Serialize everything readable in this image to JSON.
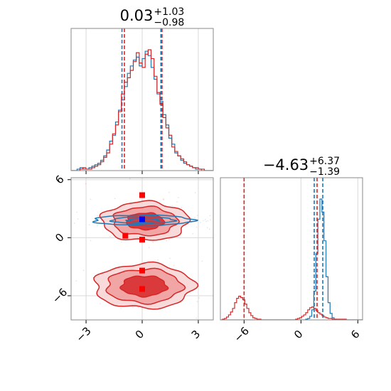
{
  "chart_data": [
    {
      "type": "histogram",
      "panel": "top-left",
      "title_main": "0.03",
      "title_sup": "+1.03",
      "title_sub": "−0.98",
      "xlim": [
        -3.8,
        3.8
      ],
      "bin_edges_range": [
        -3.8,
        3.8
      ],
      "series": [
        {
          "name": "",
          "color": "#1f77b4",
          "counts": [
            0,
            0,
            1,
            2,
            1,
            1,
            2,
            3,
            4,
            5,
            7,
            10,
            14,
            20,
            24,
            33,
            41,
            48,
            57,
            66,
            71,
            75,
            77,
            71,
            76,
            81,
            78,
            70,
            62,
            52,
            47,
            38,
            31,
            22,
            18,
            12,
            10,
            7,
            5,
            4,
            3,
            2,
            1,
            1,
            0,
            0,
            0,
            0
          ],
          "quantiles": [
            -1.08,
            1.0
          ]
        },
        {
          "name": "",
          "color": "#d62728",
          "counts": [
            0,
            0,
            0,
            1,
            2,
            1,
            1,
            2,
            3,
            4,
            6,
            9,
            12,
            18,
            25,
            31,
            40,
            52,
            60,
            63,
            68,
            74,
            80,
            73,
            70,
            79,
            82,
            76,
            64,
            53,
            45,
            36,
            29,
            24,
            16,
            13,
            10,
            8,
            6,
            4,
            3,
            2,
            2,
            1,
            1,
            0,
            0,
            0
          ],
          "quantiles": [
            -0.95,
            1.06
          ]
        }
      ],
      "xticks": [
        -3,
        0,
        3
      ],
      "xtick_labels_shown": false
    },
    {
      "type": "contour",
      "panel": "bottom-left",
      "xlim": [
        -3.8,
        3.8
      ],
      "ylim": [
        -8.5,
        6.2
      ],
      "xticks": [
        -3,
        0,
        3
      ],
      "xtick_labels": [
        "−3",
        "0",
        "3"
      ],
      "yticks": [
        -6,
        0,
        6
      ],
      "ytick_labels": [
        "−6",
        "0",
        "6"
      ],
      "blobs": [
        {
          "color": "#d62728",
          "cx": 0.15,
          "cy": 1.7,
          "sx": 1.1,
          "sy": 0.95,
          "levels": [
            2.1,
            1.55,
            0.9
          ]
        },
        {
          "color": "#d62728",
          "cx": 0.1,
          "cy": -5.0,
          "sx": 1.15,
          "sy": 1.0,
          "levels": [
            2.3,
            1.75,
            1.05
          ]
        },
        {
          "color": "#1f77b4",
          "cx": 0.05,
          "cy": 1.8,
          "sx": 1.4,
          "sy": 0.28,
          "levels": [
            1.9,
            1.2,
            0.6
          ]
        }
      ],
      "outlier_squares": [
        {
          "x": -0.9,
          "y": 0.2,
          "color": "#ff0000"
        },
        {
          "x": 0.0,
          "y": 4.4,
          "color": "#ff0000"
        },
        {
          "x": 0.0,
          "y": -0.2,
          "color": "#ff0000"
        },
        {
          "x": 0.0,
          "y": -3.4,
          "color": "#ff0000"
        },
        {
          "x": 0.0,
          "y": -5.3,
          "color": "#ff0000"
        },
        {
          "x": 0.0,
          "y": 1.9,
          "color": "#0000ff"
        }
      ]
    },
    {
      "type": "histogram",
      "panel": "bottom-right",
      "title_main": "−4.63",
      "title_sup": "+6.37",
      "title_sub": "−1.39",
      "xlim": [
        -8.5,
        6.5
      ],
      "bin_edges_range": [
        -8.5,
        6.5
      ],
      "xticks": [
        -6,
        0,
        6
      ],
      "xtick_labels": [
        "−6",
        "0",
        "6"
      ],
      "series": [
        {
          "name": "",
          "color": "#1f77b4",
          "counts": [
            0,
            0,
            0,
            0,
            0,
            0,
            0,
            0,
            0,
            0,
            0,
            0,
            0,
            0,
            0,
            0,
            0,
            0,
            0,
            0,
            0,
            0,
            0,
            0,
            0,
            0,
            0,
            0,
            0,
            0,
            0,
            0,
            0,
            0,
            0,
            0,
            0,
            0,
            0,
            0,
            0,
            0,
            1,
            2,
            5,
            14,
            40,
            92,
            140,
            168,
            150,
            110,
            60,
            24,
            9,
            3,
            1,
            0,
            0,
            0,
            0,
            0,
            0,
            0,
            0,
            0,
            0,
            0,
            0,
            0
          ],
          "quantiles": [
            1.4,
            2.3
          ]
        },
        {
          "name": "",
          "color": "#d62728",
          "counts": [
            0,
            1,
            2,
            4,
            7,
            11,
            16,
            24,
            30,
            33,
            31,
            28,
            22,
            16,
            10,
            6,
            3,
            2,
            1,
            1,
            0,
            0,
            0,
            0,
            0,
            0,
            0,
            0,
            0,
            0,
            0,
            0,
            0,
            0,
            0,
            0,
            0,
            1,
            2,
            3,
            5,
            7,
            10,
            14,
            17,
            18,
            16,
            13,
            10,
            8,
            6,
            4,
            3,
            2,
            2,
            1,
            1,
            1,
            1,
            1,
            1,
            1,
            0,
            0,
            0,
            0,
            0,
            0,
            0,
            0
          ],
          "quantiles": [
            -6.0,
            1.7
          ]
        }
      ]
    }
  ]
}
